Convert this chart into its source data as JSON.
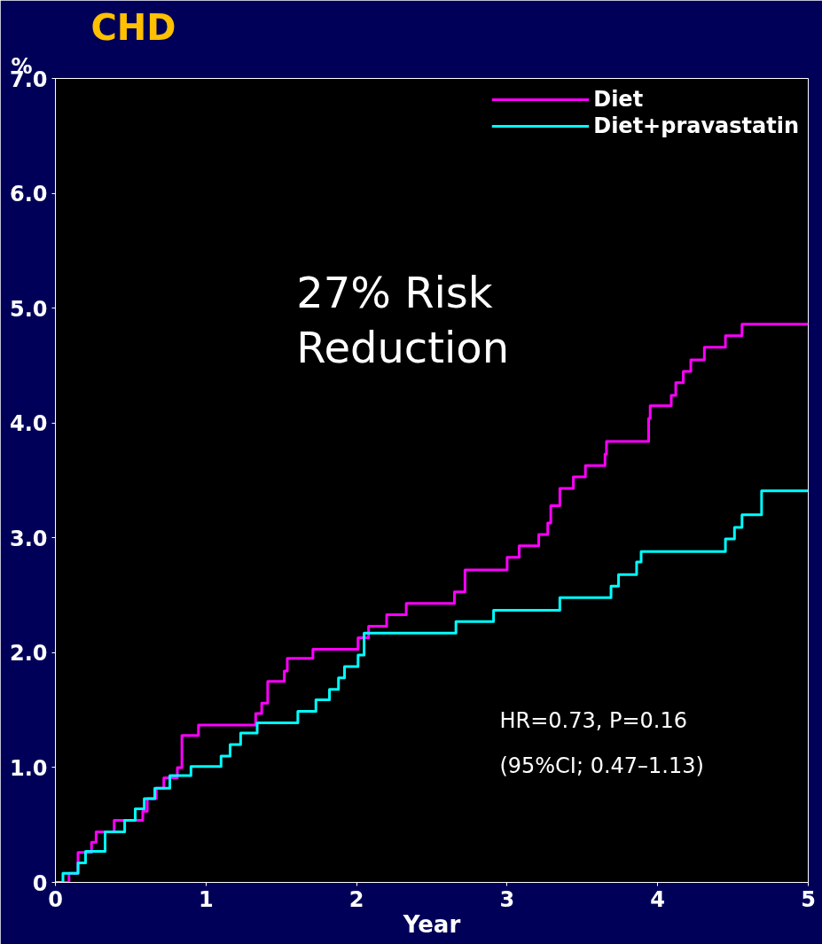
{
  "chart_data": {
    "type": "step",
    "title": "CHD",
    "ylabel": "%",
    "xlabel": "Year",
    "annotations": [
      "27% Risk\nReduction",
      "HR=0.73, P=0.16",
      "(95%CI; 0.47–1.13)"
    ],
    "xlim": [
      0,
      5
    ],
    "ylim": [
      0,
      7
    ],
    "xticks": [
      0,
      1,
      2,
      3,
      4,
      5
    ],
    "yticks": [
      0,
      {
        "value": 1,
        "label": "1.0"
      },
      {
        "value": 2,
        "label": "2.0"
      },
      {
        "value": 3,
        "label": "3.0"
      },
      {
        "value": 4,
        "label": "4.0"
      },
      {
        "value": 5,
        "label": "5.0"
      },
      {
        "value": 6,
        "label": "6.0"
      },
      {
        "value": 7,
        "label": "7.0"
      }
    ],
    "grid": false,
    "legend": "top right",
    "series": [
      {
        "name": "Diet",
        "color": "#ff00ff",
        "x": [
          0,
          0.09,
          0.15,
          0.24,
          0.27,
          0.39,
          0.58,
          0.61,
          0.67,
          0.72,
          0.81,
          0.84,
          0.95,
          1.33,
          1.37,
          1.41,
          1.52,
          1.54,
          1.71,
          2.01,
          2.08,
          2.2,
          2.33,
          2.65,
          2.72,
          3.0,
          3.08,
          3.21,
          3.27,
          3.29,
          3.35,
          3.44,
          3.52,
          3.65,
          3.66,
          3.94,
          3.95,
          4.09,
          4.12,
          4.17,
          4.22,
          4.31,
          4.45,
          4.56,
          5.0
        ],
        "values": [
          0,
          0.08,
          0.26,
          0.35,
          0.44,
          0.54,
          0.62,
          0.73,
          0.82,
          0.91,
          1.0,
          1.28,
          1.37,
          1.47,
          1.56,
          1.75,
          1.84,
          1.95,
          2.03,
          2.13,
          2.23,
          2.33,
          2.43,
          2.53,
          2.72,
          2.83,
          2.93,
          3.03,
          3.13,
          3.28,
          3.43,
          3.53,
          3.63,
          3.73,
          3.84,
          4.04,
          4.15,
          4.24,
          4.35,
          4.45,
          4.55,
          4.66,
          4.76,
          4.86,
          4.86
        ]
      },
      {
        "name": "Diet+pravastatin",
        "color": "#00ffff",
        "x": [
          0,
          0.05,
          0.15,
          0.2,
          0.33,
          0.46,
          0.53,
          0.59,
          0.66,
          0.76,
          0.9,
          1.1,
          1.16,
          1.23,
          1.34,
          1.61,
          1.73,
          1.82,
          1.88,
          1.92,
          2.01,
          2.05,
          2.66,
          2.91,
          3.35,
          3.69,
          3.74,
          3.86,
          3.89,
          4.45,
          4.51,
          4.56,
          4.69,
          5.0
        ],
        "values": [
          0,
          0.08,
          0.17,
          0.27,
          0.44,
          0.54,
          0.64,
          0.73,
          0.82,
          0.93,
          1.01,
          1.1,
          1.2,
          1.3,
          1.39,
          1.49,
          1.59,
          1.68,
          1.78,
          1.88,
          1.98,
          2.17,
          2.27,
          2.37,
          2.48,
          2.58,
          2.68,
          2.79,
          2.88,
          2.99,
          3.09,
          3.2,
          3.41,
          3.41
        ]
      }
    ]
  }
}
